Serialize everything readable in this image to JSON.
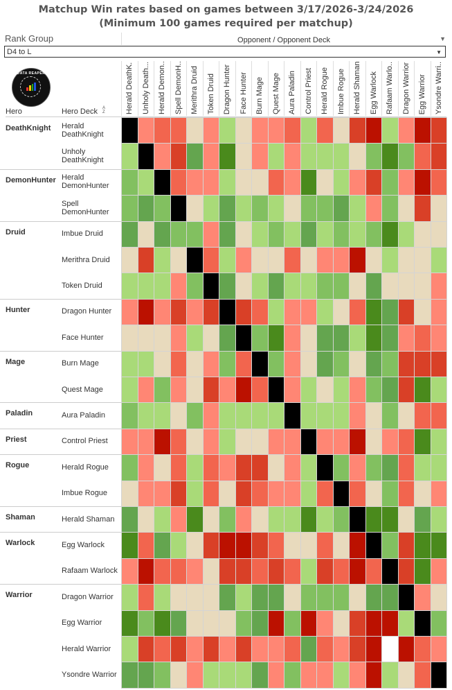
{
  "title_line1": "Matchup Win rates based on games between 3/17/2026-3/24/2026",
  "title_line2": "(Minimum 100 games required per matchup)",
  "filter": {
    "label": "Rank Group",
    "value": "D4 to L"
  },
  "column_group_label": "Opponent / Opponent Deck",
  "row_headers": {
    "hero": "Hero",
    "deck": "Hero Deck"
  },
  "logo_text": "DATA REAPER REPORT",
  "chart_data": {
    "type": "heatmap",
    "title": "Matchup Win rates based on games between 3/17/2026-3/24/2026",
    "xlabel": "Opponent / Opponent Deck",
    "ylabel": "Hero / Hero Deck",
    "scale_note": "levels -4 (strongly unfavored, dark red) to 4 (strongly favored, dark green); M = mirror (black); null = no data (white)",
    "palette": {
      "-4": "#bb1100",
      "-3": "#d94027",
      "-2": "#f2654e",
      "-1": "#ff8674",
      "0": "#e8dabd",
      "1": "#a9da78",
      "2": "#82c060",
      "3": "#64a54f",
      "4": "#4a8a1c",
      "M": "#000000",
      "null": "#ffffff"
    },
    "columns": [
      "Herald DeathK...",
      "Unholy Death...",
      "Herald Demon...",
      "Spell DemonH...",
      "Merithra Druid",
      "Token Druid",
      "Dragon Hunter",
      "Face Hunter",
      "Burn Mage",
      "Quest Mage",
      "Aura Paladin",
      "Control Priest",
      "Herald Rogue",
      "Imbue Rogue",
      "Herald Shaman",
      "Egg Warlock",
      "Rafaam Warlo...",
      "Dragon Warrior",
      "Egg Warrior",
      "Ysondre Warri..."
    ],
    "rows": [
      {
        "hero": "DeathKnight",
        "deck": "Herald DeathKnight",
        "values": [
          "M",
          -1,
          -2,
          -2,
          0,
          -1,
          1,
          0,
          -1,
          -1,
          -2,
          1,
          -2,
          0,
          -3,
          -4,
          1,
          -1,
          -4,
          -3
        ]
      },
      {
        "hero": "",
        "deck": "Unholy DeathKnight",
        "values": [
          1,
          "M",
          -1,
          -3,
          3,
          -1,
          4,
          0,
          -1,
          1,
          -1,
          1,
          1,
          1,
          0,
          2,
          4,
          2,
          -2,
          -3
        ]
      },
      {
        "hero": "DemonHunter",
        "deck": "Herald DemonHunter",
        "values": [
          2,
          1,
          "M",
          -2,
          -1,
          -1,
          1,
          0,
          0,
          -2,
          -1,
          4,
          0,
          1,
          -1,
          -3,
          2,
          -1,
          -4,
          -2
        ]
      },
      {
        "hero": "",
        "deck": "Spell DemonHunter",
        "values": [
          2,
          3,
          2,
          "M",
          0,
          1,
          3,
          1,
          2,
          1,
          0,
          2,
          2,
          3,
          1,
          -1,
          2,
          0,
          -3,
          0
        ]
      },
      {
        "hero": "Druid",
        "deck": "Imbue Druid",
        "values": [
          3,
          0,
          3,
          2,
          2,
          -1,
          3,
          0,
          1,
          2,
          1,
          3,
          1,
          2,
          1,
          2,
          4,
          1,
          0,
          0
        ]
      },
      {
        "hero": "",
        "deck": "Merithra Druid",
        "values": [
          0,
          -3,
          1,
          0,
          "M",
          -2,
          1,
          -1,
          0,
          0,
          -2,
          0,
          -1,
          -1,
          -4,
          0,
          1,
          0,
          0,
          1
        ]
      },
      {
        "hero": "",
        "deck": "Token Druid",
        "values": [
          1,
          1,
          1,
          -1,
          2,
          "M",
          3,
          0,
          1,
          3,
          1,
          1,
          2,
          2,
          0,
          3,
          0,
          0,
          0,
          -1
        ]
      },
      {
        "hero": "Hunter",
        "deck": "Dragon Hunter",
        "values": [
          -1,
          -4,
          -1,
          -3,
          -1,
          -3,
          "M",
          -3,
          -2,
          1,
          -1,
          -1,
          1,
          0,
          -2,
          4,
          3,
          -3,
          0,
          -1
        ]
      },
      {
        "hero": "",
        "deck": "Face Hunter",
        "values": [
          0,
          0,
          0,
          -1,
          1,
          0,
          3,
          "M",
          2,
          4,
          -1,
          0,
          3,
          3,
          1,
          4,
          3,
          -1,
          -2,
          -1
        ]
      },
      {
        "hero": "Mage",
        "deck": "Burn Mage",
        "values": [
          1,
          1,
          0,
          -2,
          0,
          -1,
          2,
          -2,
          "M",
          2,
          -1,
          0,
          3,
          2,
          0,
          3,
          2,
          -3,
          -3,
          -3
        ]
      },
      {
        "hero": "",
        "deck": "Quest Mage",
        "values": [
          1,
          -1,
          2,
          -1,
          0,
          -3,
          -1,
          -4,
          -2,
          "M",
          -1,
          1,
          0,
          1,
          -1,
          2,
          3,
          -3,
          4,
          1
        ]
      },
      {
        "hero": "Paladin",
        "deck": "Aura Paladin",
        "values": [
          2,
          1,
          1,
          0,
          2,
          -1,
          1,
          1,
          1,
          1,
          "M",
          1,
          1,
          1,
          -1,
          0,
          2,
          0,
          -2,
          -2
        ]
      },
      {
        "hero": "Priest",
        "deck": "Control Priest",
        "values": [
          -1,
          -1,
          -4,
          -2,
          0,
          -1,
          1,
          0,
          0,
          -1,
          -1,
          "M",
          -1,
          -1,
          -4,
          0,
          -1,
          -2,
          4,
          1
        ]
      },
      {
        "hero": "Rogue",
        "deck": "Herald Rogue",
        "values": [
          2,
          -1,
          0,
          -2,
          1,
          -2,
          -1,
          -3,
          -3,
          0,
          -1,
          1,
          "M",
          2,
          -1,
          2,
          3,
          -2,
          1,
          1
        ]
      },
      {
        "hero": "",
        "deck": "Imbue Rogue",
        "values": [
          0,
          -1,
          -1,
          -3,
          1,
          -2,
          0,
          -3,
          -2,
          -1,
          -1,
          1,
          -2,
          "M",
          -2,
          0,
          2,
          -2,
          0,
          -1
        ]
      },
      {
        "hero": "Shaman",
        "deck": "Herald Shaman",
        "values": [
          3,
          0,
          1,
          -1,
          4,
          0,
          2,
          -1,
          0,
          1,
          1,
          4,
          1,
          2,
          "M",
          4,
          4,
          0,
          3,
          1
        ]
      },
      {
        "hero": "Warlock",
        "deck": "Egg Warlock",
        "values": [
          4,
          -2,
          3,
          1,
          0,
          -3,
          -4,
          -4,
          -3,
          -2,
          0,
          0,
          -2,
          0,
          -4,
          "M",
          2,
          -3,
          4,
          4
        ]
      },
      {
        "hero": "",
        "deck": "Rafaam Warlock",
        "values": [
          -1,
          -4,
          -2,
          -2,
          -1,
          0,
          -3,
          -3,
          -2,
          -3,
          -2,
          1,
          -3,
          -2,
          -4,
          -2,
          "M",
          -3,
          4,
          -1
        ]
      },
      {
        "hero": "Warrior",
        "deck": "Dragon Warrior",
        "values": [
          1,
          -2,
          1,
          0,
          0,
          0,
          3,
          1,
          3,
          3,
          0,
          2,
          2,
          2,
          0,
          3,
          3,
          "M",
          -1,
          0
        ]
      },
      {
        "hero": "",
        "deck": "Egg Warrior",
        "values": [
          4,
          2,
          4,
          3,
          0,
          0,
          0,
          2,
          3,
          -4,
          2,
          -4,
          -1,
          0,
          -3,
          -4,
          -4,
          1,
          "M",
          2
        ]
      },
      {
        "hero": "",
        "deck": "Herald Warrior",
        "values": [
          1,
          -3,
          -2,
          -3,
          -1,
          -3,
          -1,
          -3,
          -1,
          -1,
          -2,
          3,
          -2,
          -1,
          -3,
          -4,
          null,
          -4,
          -2,
          -1
        ]
      },
      {
        "hero": "",
        "deck": "Ysondre Warrior",
        "values": [
          3,
          3,
          2,
          0,
          -1,
          1,
          1,
          1,
          3,
          -1,
          2,
          -1,
          -1,
          1,
          -1,
          -4,
          1,
          0,
          -2,
          "M"
        ]
      }
    ]
  }
}
